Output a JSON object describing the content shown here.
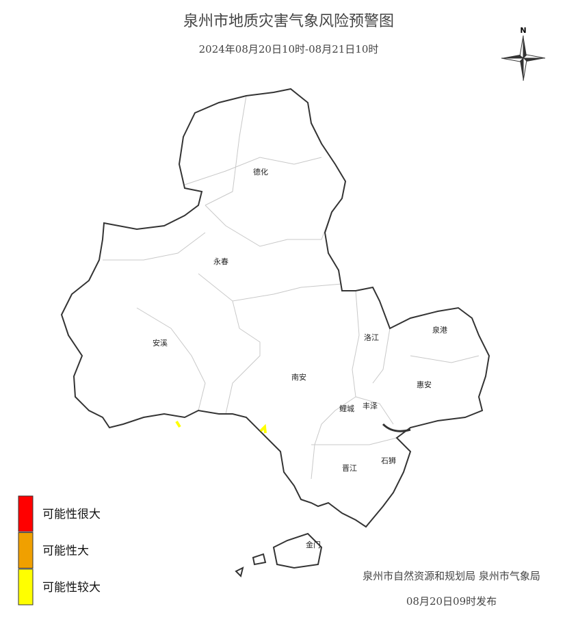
{
  "header": {
    "title": "泉州市地质灾害气象风险预警图",
    "subtitle": "2024年08月20日10时-08月21日10时"
  },
  "compass": "N",
  "regions": [
    {
      "label": "德化"
    },
    {
      "label": "永春"
    },
    {
      "label": "安溪"
    },
    {
      "label": "南安"
    },
    {
      "label": "洛江"
    },
    {
      "label": "泉港"
    },
    {
      "label": "惠安"
    },
    {
      "label": "鲤城"
    },
    {
      "label": "丰泽"
    },
    {
      "label": "石狮"
    },
    {
      "label": "晋江"
    },
    {
      "label": "金门"
    }
  ],
  "legend": [
    {
      "label": "可能性很大",
      "color": "#ff0000"
    },
    {
      "label": "可能性大",
      "color": "#f0a000"
    },
    {
      "label": "可能性较大",
      "color": "#ffff00"
    }
  ],
  "footer": {
    "issuer": "泉州市自然资源和规划局 泉州市气象局",
    "time": "08月20日09时发布"
  }
}
